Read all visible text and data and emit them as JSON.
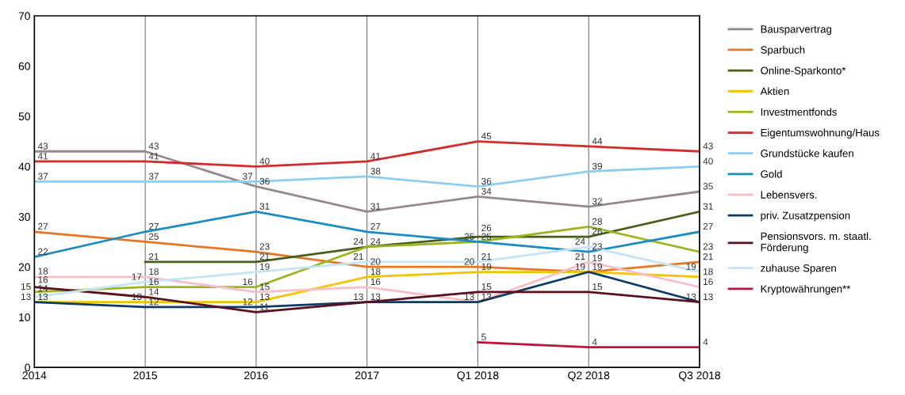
{
  "chart_data": {
    "type": "line",
    "categories": [
      "2014",
      "2015",
      "2016",
      "2017",
      "Q1 2018",
      "Q2 2018",
      "Q3 2018"
    ],
    "ylim": [
      0,
      70
    ],
    "yticks": [
      0,
      10,
      20,
      30,
      40,
      50,
      60,
      70
    ],
    "grid": "x",
    "legend": "right",
    "data_labels": true,
    "marker": "none",
    "line_style": "solid",
    "series": [
      {
        "name": "Bausparvertrag",
        "color": "#948a8a",
        "values": [
          43,
          43,
          36,
          31,
          34,
          32,
          35
        ]
      },
      {
        "name": "Sparbuch",
        "color": "#e87722",
        "values": [
          27,
          25,
          23,
          20,
          20,
          19,
          21
        ]
      },
      {
        "name": "Online-Sparkonto*",
        "color": "#4a5e1a",
        "values": [
          null,
          21,
          21,
          24,
          26,
          26,
          31
        ]
      },
      {
        "name": "Aktien",
        "color": "#f5c400",
        "values": [
          13,
          13,
          13,
          18,
          19,
          19,
          18
        ]
      },
      {
        "name": "Investmentfonds",
        "color": "#9bb51f",
        "values": [
          15,
          16,
          16,
          24,
          25,
          28,
          23
        ]
      },
      {
        "name": "Eigentumswohnung/Haus",
        "color": "#d52b2b",
        "values": [
          41,
          41,
          40,
          41,
          45,
          44,
          43
        ]
      },
      {
        "name": "Grundstücke kaufen",
        "color": "#8fcdf0",
        "values": [
          37,
          37,
          37,
          38,
          36,
          39,
          40
        ]
      },
      {
        "name": "Gold",
        "color": "#1b8cc4",
        "values": [
          22,
          27,
          31,
          27,
          25,
          23,
          27
        ]
      },
      {
        "name": "Lebensvers.",
        "color": "#f7bfc8",
        "values": [
          18,
          18,
          15,
          16,
          13,
          21,
          16
        ]
      },
      {
        "name": "priv. Zusatzpension",
        "color": "#0d3a66",
        "values": [
          13,
          12,
          12,
          13,
          13,
          19,
          13
        ]
      },
      {
        "name": "Pensionsvors. m. staatl.\nFörderung",
        "color": "#5a1020",
        "values": [
          16,
          14,
          11,
          13,
          15,
          15,
          13
        ]
      },
      {
        "name": "zuhause Sparen",
        "color": "#c5e5f7",
        "values": [
          14,
          17,
          19,
          21,
          21,
          24,
          19
        ]
      },
      {
        "name": "Kryptowährungen**",
        "color": "#c0143c",
        "values": [
          null,
          null,
          null,
          null,
          5,
          4,
          4
        ]
      }
    ]
  }
}
